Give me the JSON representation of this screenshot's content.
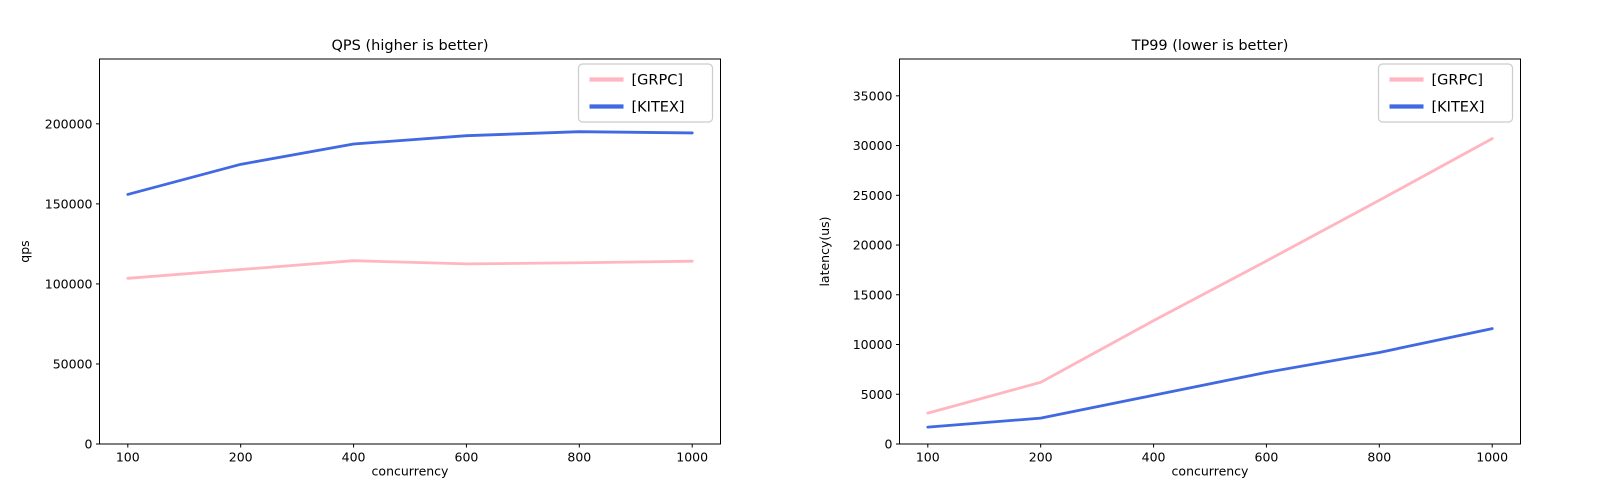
{
  "figure": {
    "background": "#ffffff"
  },
  "chart_data": [
    {
      "type": "line",
      "title": "QPS (higher is better)",
      "xlabel": "concurrency",
      "ylabel": "qps",
      "categories": [
        100,
        200,
        400,
        600,
        800,
        1000
      ],
      "xticklabels": [
        "100",
        "200",
        "400",
        "600",
        "800",
        "1000"
      ],
      "series": [
        {
          "name": "[GRPC]",
          "color": "#ffb6c1",
          "values": [
            103500,
            109000,
            114500,
            112500,
            113200,
            114200
          ]
        },
        {
          "name": "[KITEX]",
          "color": "#4169e1",
          "values": [
            155900,
            174700,
            187400,
            192600,
            195100,
            194300
          ]
        }
      ],
      "yticks": [
        0,
        50000,
        100000,
        150000,
        200000
      ],
      "yticklabels": [
        "0",
        "50000",
        "100000",
        "150000",
        "200000"
      ],
      "ylim": [
        0,
        240500
      ],
      "grid": false,
      "legend_position": "upper right"
    },
    {
      "type": "line",
      "title": "TP99 (lower is better)",
      "xlabel": "concurrency",
      "ylabel": "latency(us)",
      "categories": [
        100,
        200,
        400,
        600,
        800,
        1000
      ],
      "xticklabels": [
        "100",
        "200",
        "400",
        "600",
        "800",
        "1000"
      ],
      "series": [
        {
          "name": "[GRPC]",
          "color": "#ffb6c1",
          "values": [
            3100,
            6200,
            12400,
            18400,
            24500,
            30700
          ]
        },
        {
          "name": "[KITEX]",
          "color": "#4169e1",
          "values": [
            1700,
            2600,
            4900,
            7200,
            9200,
            11600
          ]
        }
      ],
      "yticks": [
        0,
        5000,
        10000,
        15000,
        20000,
        25000,
        30000,
        35000
      ],
      "yticklabels": [
        "0",
        "5000",
        "10000",
        "15000",
        "20000",
        "25000",
        "30000",
        "35000"
      ],
      "ylim": [
        0,
        38700
      ],
      "grid": false,
      "legend_position": "upper right"
    }
  ]
}
